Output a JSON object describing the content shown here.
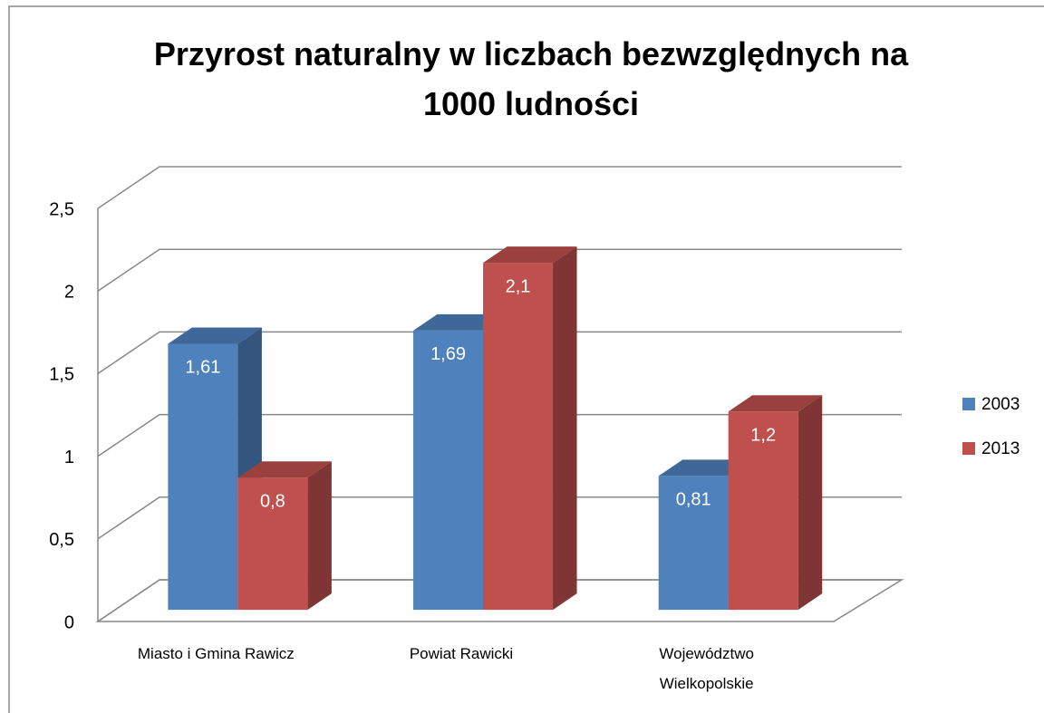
{
  "chart_data": {
    "type": "bar3d",
    "title": "Przyrost naturalny w liczbach bezwzględnych na 1000 ludności",
    "categories": [
      "Miasto i Gmina Rawicz",
      "Powiat Rawicki",
      "Województwo Wielkopolskie"
    ],
    "series": [
      {
        "name": "2003",
        "color": "#4f81bd",
        "values": [
          1.61,
          1.69,
          0.81
        ],
        "value_labels": [
          "1,61",
          "1,69",
          "0,81"
        ]
      },
      {
        "name": "2013",
        "color": "#c0504d",
        "values": [
          0.8,
          2.1,
          1.2
        ],
        "value_labels": [
          "0,8",
          "2,1",
          "1,2"
        ]
      }
    ],
    "ylim": [
      0,
      2.5
    ],
    "yticks": [
      0,
      {
        "value": 0.5,
        "label": "0,5"
      },
      1,
      {
        "value": 1.5,
        "label": "1,5"
      },
      2,
      {
        "value": 2.5,
        "label": "2,5"
      }
    ],
    "grid": true,
    "legend": "right"
  }
}
